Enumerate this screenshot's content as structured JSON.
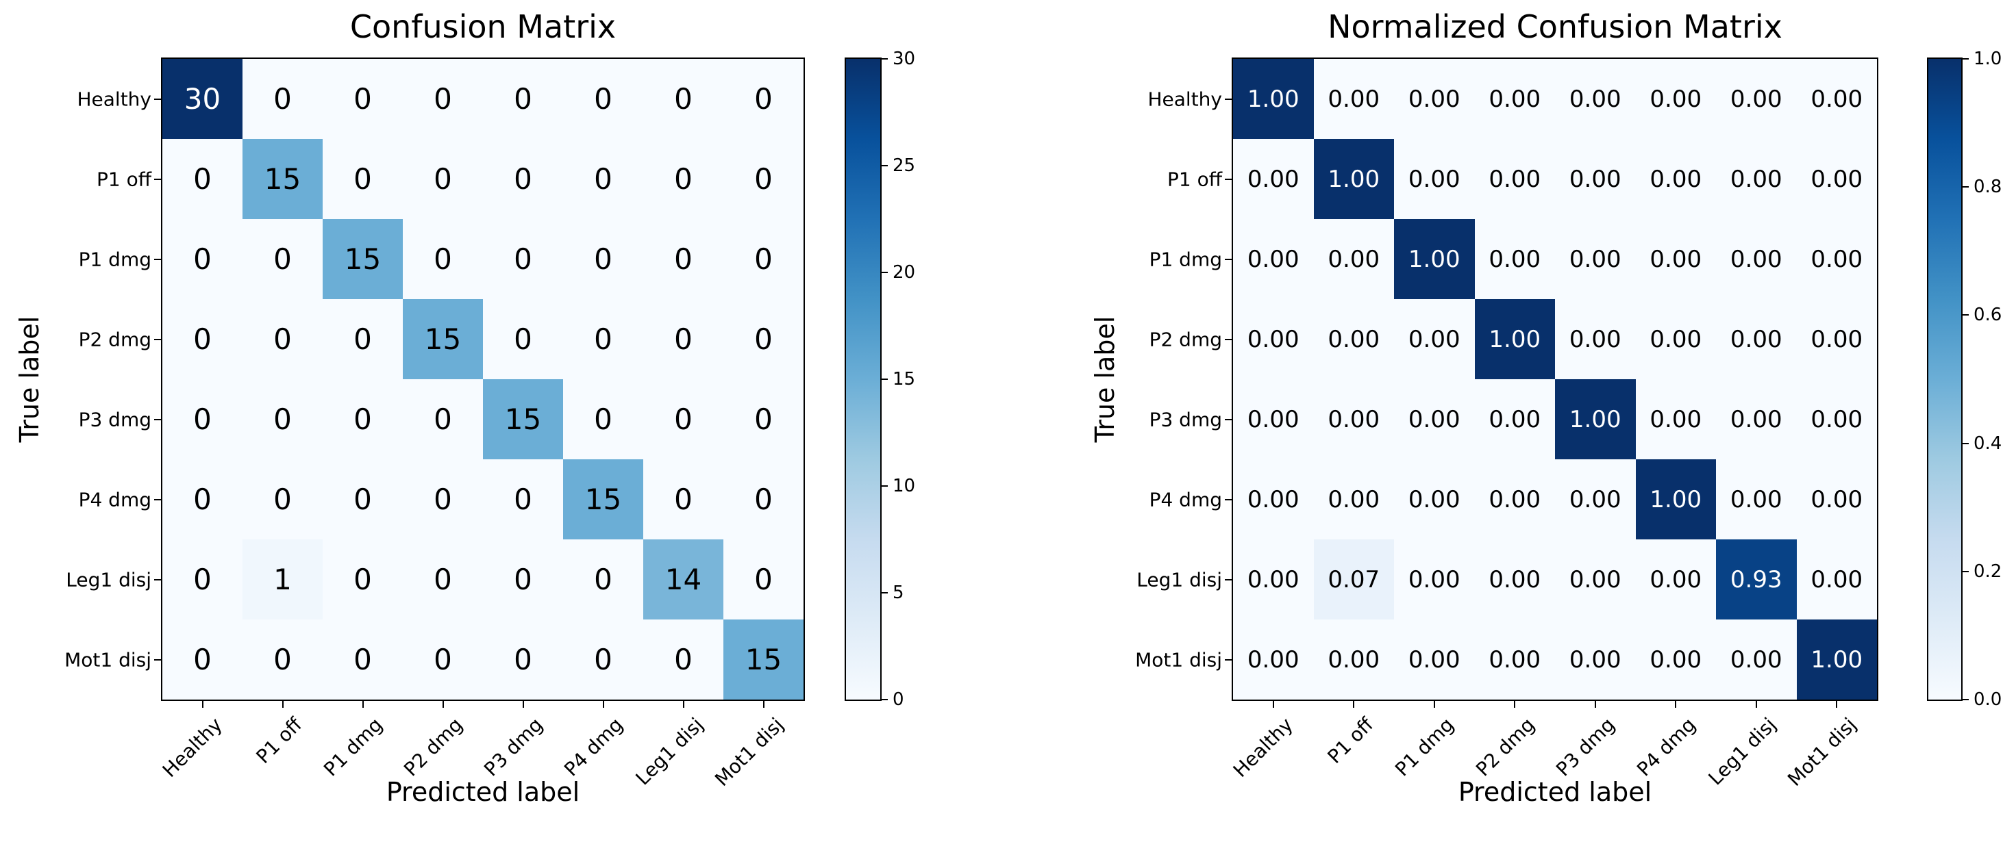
{
  "chart_data": [
    {
      "type": "heatmap",
      "title": "Confusion Matrix",
      "xlabel": "Predicted label",
      "ylabel": "True label",
      "classes": [
        "Healthy",
        "P1 off",
        "P1 dmg",
        "P2 dmg",
        "P3 dmg",
        "P4 dmg",
        "Leg1 disj",
        "Mot1 disj"
      ],
      "matrix": [
        [
          30,
          0,
          0,
          0,
          0,
          0,
          0,
          0
        ],
        [
          0,
          15,
          0,
          0,
          0,
          0,
          0,
          0
        ],
        [
          0,
          0,
          15,
          0,
          0,
          0,
          0,
          0
        ],
        [
          0,
          0,
          0,
          15,
          0,
          0,
          0,
          0
        ],
        [
          0,
          0,
          0,
          0,
          15,
          0,
          0,
          0
        ],
        [
          0,
          0,
          0,
          0,
          0,
          15,
          0,
          0
        ],
        [
          0,
          1,
          0,
          0,
          0,
          0,
          14,
          0
        ],
        [
          0,
          0,
          0,
          0,
          0,
          0,
          0,
          15
        ]
      ],
      "vmin": 0,
      "vmax": 30,
      "value_format": "int",
      "colorbar_tick_labels": [
        "0",
        "5",
        "10",
        "15",
        "20",
        "25",
        "30"
      ],
      "colorbar_tick_values": [
        0,
        5,
        10,
        15,
        20,
        25,
        30
      ],
      "colormap": "Blues",
      "grid": false,
      "legend": "colorbar-right"
    },
    {
      "type": "heatmap",
      "title": "Normalized Confusion Matrix",
      "xlabel": "Predicted label",
      "ylabel": "True label",
      "classes": [
        "Healthy",
        "P1 off",
        "P1 dmg",
        "P2 dmg",
        "P3 dmg",
        "P4 dmg",
        "Leg1 disj",
        "Mot1 disj"
      ],
      "matrix": [
        [
          1.0,
          0.0,
          0.0,
          0.0,
          0.0,
          0.0,
          0.0,
          0.0
        ],
        [
          0.0,
          1.0,
          0.0,
          0.0,
          0.0,
          0.0,
          0.0,
          0.0
        ],
        [
          0.0,
          0.0,
          1.0,
          0.0,
          0.0,
          0.0,
          0.0,
          0.0
        ],
        [
          0.0,
          0.0,
          0.0,
          1.0,
          0.0,
          0.0,
          0.0,
          0.0
        ],
        [
          0.0,
          0.0,
          0.0,
          0.0,
          1.0,
          0.0,
          0.0,
          0.0
        ],
        [
          0.0,
          0.0,
          0.0,
          0.0,
          0.0,
          1.0,
          0.0,
          0.0
        ],
        [
          0.0,
          0.07,
          0.0,
          0.0,
          0.0,
          0.0,
          0.93,
          0.0
        ],
        [
          0.0,
          0.0,
          0.0,
          0.0,
          0.0,
          0.0,
          0.0,
          1.0
        ]
      ],
      "vmin": 0.0,
      "vmax": 1.0,
      "value_format": "fixed2",
      "colorbar_tick_labels": [
        "0.0",
        "0.2",
        "0.4",
        "0.6",
        "0.8",
        "1.0"
      ],
      "colorbar_tick_values": [
        0.0,
        0.2,
        0.4,
        0.6,
        0.8,
        1.0
      ],
      "colormap": "Blues",
      "grid": false,
      "legend": "colorbar-right"
    }
  ],
  "colors": {
    "colormap_stops": [
      "#f7fbff",
      "#deebf7",
      "#c6dbef",
      "#9ecae1",
      "#6baed6",
      "#4292c6",
      "#2171b5",
      "#08519c",
      "#08306b"
    ],
    "cell_text_dark": "#000000",
    "cell_text_light": "#ffffff",
    "axis": "#000000",
    "background": "#ffffff"
  }
}
